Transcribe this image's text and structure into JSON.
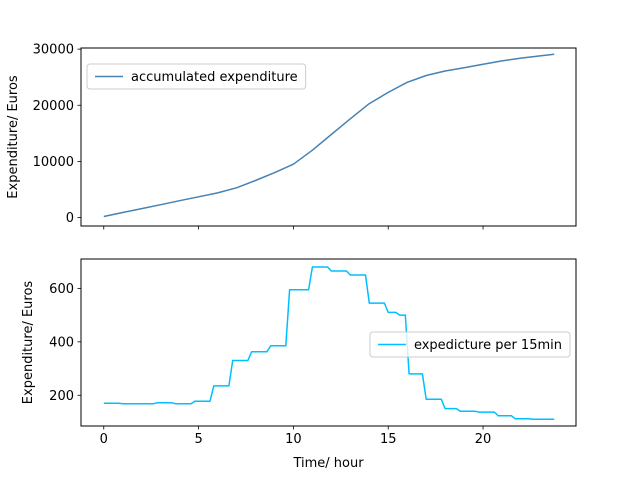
{
  "chart_data": [
    {
      "type": "line",
      "title": "",
      "xlabel": "",
      "ylabel": "Expenditure/ Euros",
      "xlim": [
        -1.2,
        24.9
      ],
      "ylim": [
        -1500,
        30200
      ],
      "xticks": [
        0,
        5,
        10,
        15,
        20
      ],
      "yticks": [
        0,
        10000,
        20000,
        30000
      ],
      "ytick_labels": [
        "0",
        "10000",
        "20000",
        "30000"
      ],
      "show_xtick_labels": false,
      "legend_position": "upper left",
      "series": [
        {
          "name": "accumulated expenditure",
          "color": "#4682b4",
          "x": [
            0,
            1,
            2,
            3,
            4,
            5,
            6,
            7,
            8,
            9,
            10,
            11,
            12,
            13,
            14,
            15,
            16,
            17,
            18,
            19,
            20,
            21,
            22,
            23,
            23.75
          ],
          "y": [
            200,
            900,
            1600,
            2300,
            3000,
            3700,
            4400,
            5300,
            6600,
            8000,
            9500,
            12000,
            14800,
            17600,
            20300,
            22300,
            24100,
            25300,
            26100,
            26700,
            27300,
            27900,
            28400,
            28800,
            29100
          ]
        }
      ]
    },
    {
      "type": "line",
      "title": "",
      "xlabel": "Time/ hour",
      "ylabel": "Expenditure/ Euros",
      "xlim": [
        -1.2,
        24.9
      ],
      "ylim": [
        85,
        710
      ],
      "xticks": [
        0,
        5,
        10,
        15,
        20
      ],
      "xtick_labels": [
        "0",
        "5",
        "10",
        "15",
        "20"
      ],
      "yticks": [
        200,
        400,
        600
      ],
      "ytick_labels": [
        "200",
        "400",
        "600"
      ],
      "legend_position": "center right",
      "series": [
        {
          "name": "expedicture per 15min",
          "color": "#00bfff",
          "x": [
            0,
            0.8,
            1,
            2.6,
            2.8,
            3.6,
            3.8,
            4.6,
            4.8,
            5.6,
            5.8,
            6.6,
            6.8,
            7.6,
            7.8,
            8.6,
            8.8,
            9.6,
            9.8,
            10.8,
            11,
            11.8,
            12,
            12.8,
            13,
            13.8,
            14,
            14.8,
            15,
            15.4,
            15.6,
            15.9,
            16.1,
            16.8,
            17,
            17.8,
            18,
            18.6,
            18.8,
            19.6,
            19.8,
            20.6,
            20.8,
            21.5,
            21.7,
            22.4,
            22.6,
            23.75
          ],
          "y": [
            170,
            170,
            168,
            168,
            172,
            172,
            168,
            168,
            178,
            178,
            235,
            235,
            330,
            330,
            363,
            363,
            385,
            385,
            595,
            595,
            680,
            680,
            665,
            665,
            650,
            650,
            545,
            545,
            510,
            510,
            500,
            500,
            280,
            280,
            185,
            185,
            150,
            150,
            140,
            140,
            137,
            137,
            123,
            123,
            112,
            112,
            110,
            110
          ]
        }
      ]
    }
  ]
}
